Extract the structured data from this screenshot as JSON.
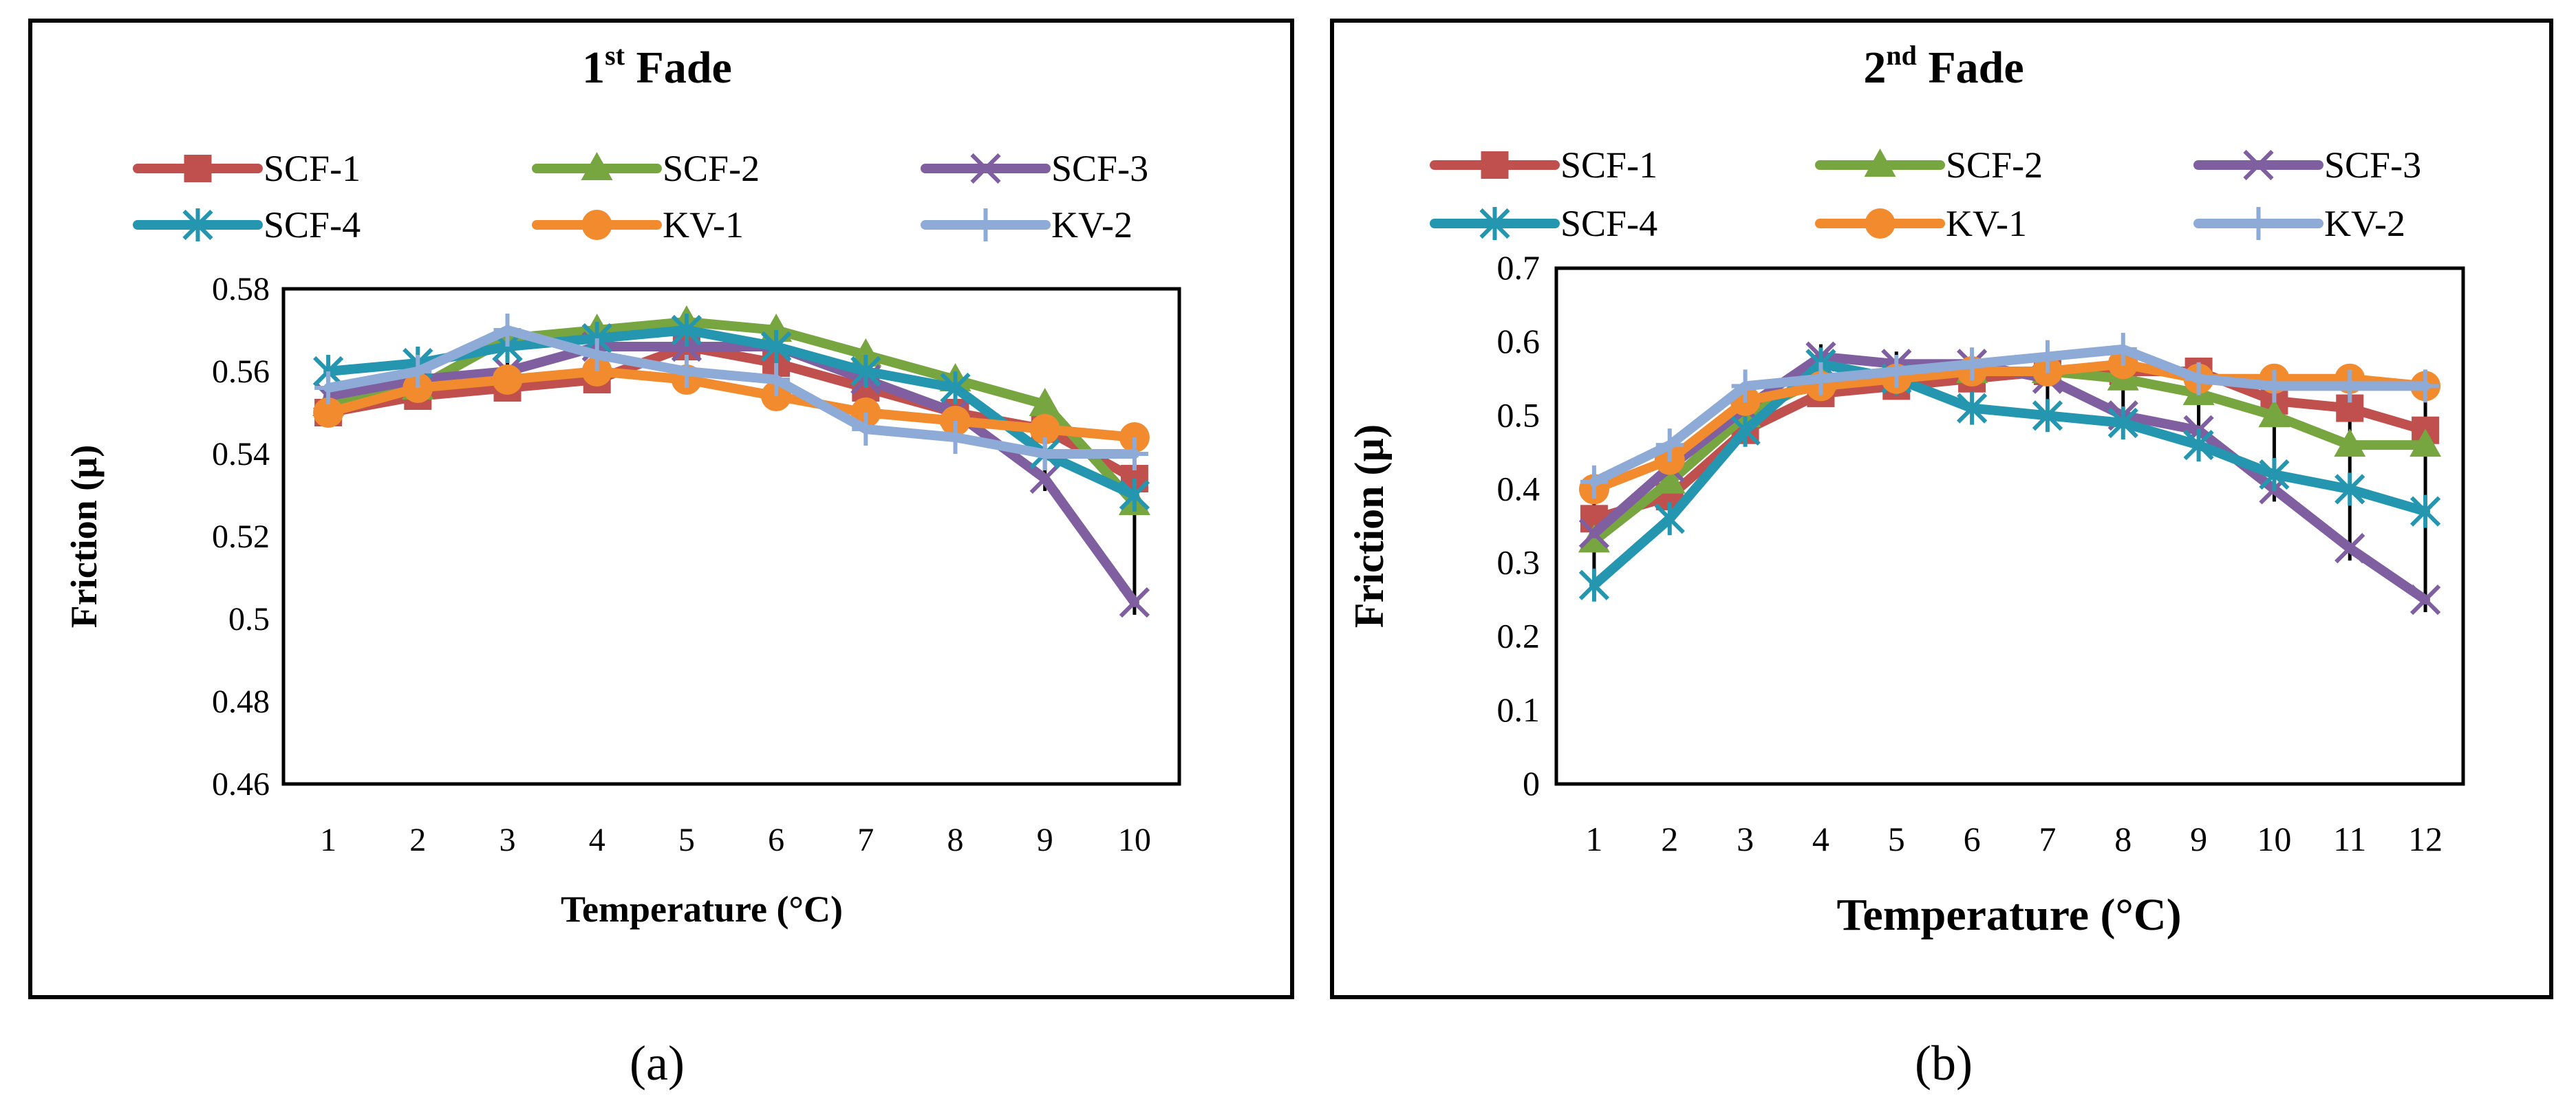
{
  "chart_data": [
    {
      "type": "line",
      "title": "1st Fade",
      "title_main": "1",
      "title_sup": "st",
      "title_rest": " Fade",
      "xlabel": "Temperature (°C)",
      "ylabel": "Friction (µ)",
      "ylim": [
        0.46,
        0.58
      ],
      "yticks": [
        0.46,
        0.48,
        0.5,
        0.52,
        0.54,
        0.56,
        0.58
      ],
      "ytick_labels": [
        "0.46",
        "0.48",
        "0.5",
        "0.52",
        "0.54",
        "0.56",
        "0.58"
      ],
      "categories": [
        "1",
        "2",
        "3",
        "4",
        "5",
        "6",
        "7",
        "8",
        "9",
        "10"
      ],
      "series": [
        {
          "name": "SCF-1",
          "marker": "square",
          "color": "#c0504d",
          "values": [
            0.55,
            0.554,
            0.556,
            0.558,
            0.566,
            0.562,
            0.556,
            0.55,
            0.546,
            0.534
          ]
        },
        {
          "name": "SCF-2",
          "marker": "triangle",
          "color": "#77a540",
          "values": [
            0.552,
            0.556,
            0.568,
            0.57,
            0.572,
            0.57,
            0.564,
            0.558,
            0.552,
            0.528
          ]
        },
        {
          "name": "SCF-3",
          "marker": "x",
          "color": "#7f5fa0",
          "values": [
            0.554,
            0.558,
            0.56,
            0.566,
            0.566,
            0.566,
            0.558,
            0.55,
            0.534,
            0.504
          ]
        },
        {
          "name": "SCF-4",
          "marker": "star",
          "color": "#2596b0",
          "values": [
            0.56,
            0.562,
            0.566,
            0.568,
            0.57,
            0.566,
            0.56,
            0.556,
            0.54,
            0.53
          ]
        },
        {
          "name": "KV-1",
          "marker": "circle",
          "color": "#f28a2e",
          "values": [
            0.55,
            0.556,
            0.558,
            0.56,
            0.558,
            0.554,
            0.55,
            0.548,
            0.546,
            0.544
          ]
        },
        {
          "name": "KV-2",
          "marker": "plus",
          "color": "#8eaad6",
          "values": [
            0.556,
            0.56,
            0.57,
            0.564,
            0.56,
            0.558,
            0.546,
            0.544,
            0.54,
            0.54
          ]
        }
      ]
    },
    {
      "type": "line",
      "title": "2nd Fade",
      "title_main": "2",
      "title_sup": "nd",
      "title_rest": " Fade",
      "xlabel": "Temperature (°C)",
      "ylabel": "Friction (µ)",
      "ylim": [
        0,
        0.7
      ],
      "yticks": [
        0,
        0.1,
        0.2,
        0.3,
        0.4,
        0.5,
        0.6,
        0.7
      ],
      "ytick_labels": [
        "0",
        "0.1",
        "0.2",
        "0.3",
        "0.4",
        "0.5",
        "0.6",
        "0.7"
      ],
      "categories": [
        "1",
        "2",
        "3",
        "4",
        "5",
        "6",
        "7",
        "8",
        "9",
        "10",
        "11",
        "12"
      ],
      "series": [
        {
          "name": "SCF-1",
          "marker": "square",
          "color": "#c0504d",
          "values": [
            0.36,
            0.39,
            0.48,
            0.53,
            0.54,
            0.55,
            0.56,
            0.56,
            0.56,
            0.52,
            0.51,
            0.48
          ]
        },
        {
          "name": "SCF-2",
          "marker": "triangle",
          "color": "#77a540",
          "values": [
            0.33,
            0.41,
            0.5,
            0.55,
            0.56,
            0.56,
            0.56,
            0.55,
            0.53,
            0.5,
            0.46,
            0.46
          ]
        },
        {
          "name": "SCF-3",
          "marker": "x",
          "color": "#7f5fa0",
          "values": [
            0.34,
            0.43,
            0.51,
            0.58,
            0.57,
            0.57,
            0.55,
            0.5,
            0.48,
            0.4,
            0.32,
            0.25
          ]
        },
        {
          "name": "SCF-4",
          "marker": "star",
          "color": "#2596b0",
          "values": [
            0.27,
            0.36,
            0.48,
            0.57,
            0.55,
            0.51,
            0.5,
            0.49,
            0.46,
            0.42,
            0.4,
            0.37
          ]
        },
        {
          "name": "KV-1",
          "marker": "circle",
          "color": "#f28a2e",
          "values": [
            0.4,
            0.44,
            0.52,
            0.54,
            0.55,
            0.56,
            0.56,
            0.57,
            0.55,
            0.55,
            0.55,
            0.54
          ]
        },
        {
          "name": "KV-2",
          "marker": "plus",
          "color": "#8eaad6",
          "values": [
            0.41,
            0.46,
            0.54,
            0.55,
            0.56,
            0.57,
            0.58,
            0.59,
            0.55,
            0.54,
            0.54,
            0.54
          ]
        }
      ]
    }
  ],
  "panel_labels": [
    "(a)",
    "(b)"
  ]
}
